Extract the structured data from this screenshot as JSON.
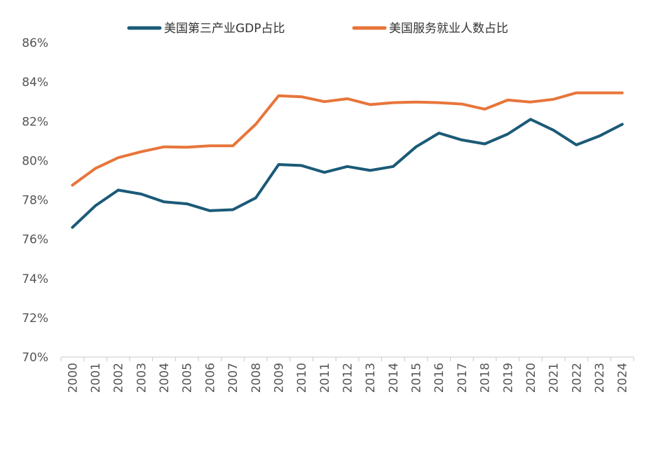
{
  "chart_data": {
    "type": "line",
    "title": "",
    "xlabel": "",
    "ylabel": "",
    "ylim": [
      70,
      86
    ],
    "ytick_values": [
      70,
      72,
      74,
      76,
      78,
      80,
      82,
      84,
      86
    ],
    "ytick_labels": [
      "70%",
      "72%",
      "74%",
      "76%",
      "78%",
      "80%",
      "82%",
      "84%",
      "86%"
    ],
    "categories": [
      "2000",
      "2001",
      "2002",
      "2003",
      "2004",
      "2005",
      "2006",
      "2007",
      "2008",
      "2009",
      "2010",
      "2011",
      "2012",
      "2013",
      "2014",
      "2015",
      "2016",
      "2017",
      "2018",
      "2019",
      "2020",
      "2021",
      "2022",
      "2023",
      "2024"
    ],
    "grid": false,
    "legend_position": "top-center",
    "series": [
      {
        "name": "美国第三产业GDP占比",
        "color": "#1b5a78",
        "values": [
          76.6,
          77.7,
          78.5,
          78.3,
          77.9,
          77.8,
          77.45,
          77.5,
          78.1,
          79.8,
          79.75,
          79.4,
          79.7,
          79.5,
          79.7,
          80.7,
          81.4,
          81.05,
          80.85,
          81.35,
          82.1,
          81.55,
          80.8,
          81.25,
          81.85
        ]
      },
      {
        "name": "美国服务就业人数占比",
        "color": "#e8753a",
        "values": [
          78.75,
          79.6,
          80.15,
          80.45,
          80.7,
          80.68,
          80.75,
          80.75,
          81.85,
          83.3,
          83.25,
          83.0,
          83.15,
          82.85,
          82.95,
          82.98,
          82.95,
          82.88,
          82.62,
          83.08,
          82.98,
          83.12,
          83.45,
          83.45,
          83.45
        ]
      }
    ]
  }
}
